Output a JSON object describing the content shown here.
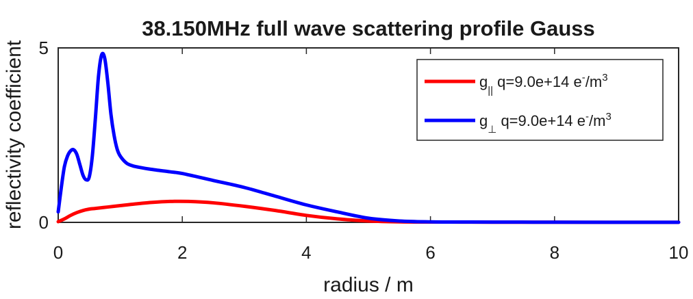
{
  "chart_data": {
    "type": "line",
    "title": "38.150MHz full wave scattering profile Gauss",
    "xlabel": "radius / m",
    "ylabel": "reflectivity coefficient",
    "xlim": [
      0,
      10
    ],
    "ylim": [
      0,
      5
    ],
    "xticks": [
      "0",
      "2",
      "4",
      "6",
      "8",
      "10"
    ],
    "yticks": [
      "0",
      "5"
    ],
    "grid": false,
    "legend_position": "top-right",
    "series": [
      {
        "name": "g|| q=9.0e+14 e-/m3",
        "legend": {
          "symbol": "g",
          "subscript": "||",
          "text": " q=9.0e+14 e",
          "sup1": "-",
          "unit": "/m",
          "sup2": "3"
        },
        "color": "#ff0000",
        "x": [
          0,
          0.1,
          0.2,
          0.3,
          0.4,
          0.5,
          0.6,
          0.8,
          1.0,
          1.2,
          1.5,
          1.8,
          2.1,
          2.5,
          3.0,
          3.5,
          4.0,
          4.5,
          5.0,
          5.5,
          6.0,
          6.5,
          7.0,
          7.5,
          8.0,
          8.5,
          9.0,
          9.5,
          10.0
        ],
        "y": [
          0.02,
          0.1,
          0.2,
          0.28,
          0.34,
          0.38,
          0.4,
          0.44,
          0.48,
          0.52,
          0.57,
          0.6,
          0.6,
          0.56,
          0.46,
          0.34,
          0.2,
          0.1,
          0.04,
          0.015,
          0.01,
          0.008,
          0.006,
          0.004,
          0.004,
          0.003,
          0.002,
          0.002,
          0.002
        ]
      },
      {
        "name": "g⊥ q=9.0e+14 e-/m3",
        "legend": {
          "symbol": "g",
          "subscript": "⊥",
          "text": " q=9.0e+14 e",
          "sup1": "-",
          "unit": "/m",
          "sup2": "3"
        },
        "color": "#0000ff",
        "x": [
          0,
          0.05,
          0.1,
          0.15,
          0.2,
          0.25,
          0.3,
          0.35,
          0.4,
          0.45,
          0.5,
          0.55,
          0.6,
          0.65,
          0.7,
          0.75,
          0.8,
          0.85,
          0.9,
          0.95,
          1.0,
          1.1,
          1.2,
          1.3,
          1.5,
          1.8,
          2.0,
          2.5,
          3.0,
          3.5,
          4.0,
          4.5,
          5.0,
          5.5,
          6.0,
          6.5,
          7.0,
          8.0,
          9.0,
          10.0
        ],
        "y": [
          0.3,
          1.0,
          1.6,
          1.9,
          2.05,
          2.08,
          1.95,
          1.65,
          1.35,
          1.22,
          1.3,
          1.9,
          3.0,
          4.2,
          4.8,
          4.7,
          4.0,
          3.1,
          2.5,
          2.1,
          1.9,
          1.7,
          1.62,
          1.58,
          1.52,
          1.45,
          1.4,
          1.2,
          1.0,
          0.75,
          0.5,
          0.3,
          0.12,
          0.04,
          0.015,
          0.01,
          0.008,
          0.005,
          0.003,
          0.002
        ]
      }
    ]
  }
}
